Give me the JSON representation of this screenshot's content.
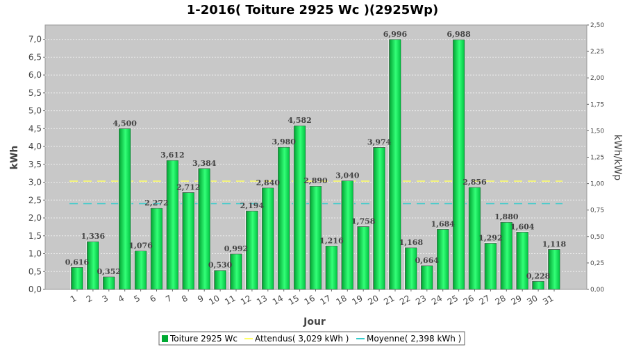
{
  "chart_data": {
    "type": "bar",
    "title": "1-2016( Toiture 2925 Wc )(2925Wp)",
    "xlabel": "Jour",
    "ylabel": "kWh",
    "ylabel_right": "kWh/kWp",
    "ylim": [
      0,
      7.4
    ],
    "ylim_right": [
      0,
      2.5
    ],
    "yticks": [
      "0,0",
      "0,5",
      "1,0",
      "1,5",
      "2,0",
      "2,5",
      "3,0",
      "3,5",
      "4,0",
      "4,5",
      "5,0",
      "5,5",
      "6,0",
      "6,5",
      "7,0"
    ],
    "yticks_right": [
      "0,00",
      "0,25",
      "0,50",
      "0,75",
      "1,00",
      "1,25",
      "1,50",
      "1,75",
      "2,00",
      "2,25",
      "2,50"
    ],
    "grid": true,
    "legend_position": "bottom",
    "categories": [
      "1",
      "2",
      "3",
      "4",
      "5",
      "6",
      "7",
      "8",
      "9",
      "10",
      "11",
      "12",
      "13",
      "14",
      "15",
      "16",
      "17",
      "18",
      "19",
      "20",
      "21",
      "22",
      "23",
      "24",
      "25",
      "26",
      "27",
      "28",
      "29",
      "30",
      "31"
    ],
    "series": [
      {
        "name": "Toiture 2925 Wc",
        "values": [
          0.616,
          1.336,
          0.352,
          4.5,
          1.076,
          2.272,
          3.612,
          2.712,
          3.384,
          0.53,
          0.992,
          2.194,
          2.84,
          3.98,
          4.582,
          2.89,
          1.216,
          3.04,
          1.758,
          3.974,
          6.996,
          1.168,
          0.664,
          1.684,
          6.988,
          2.856,
          1.292,
          1.88,
          1.604,
          0.228,
          1.118
        ],
        "labels": [
          "0,616",
          "1,336",
          "0,352",
          "4,500",
          "1,076",
          "2,272",
          "3,612",
          "2,712",
          "3,384",
          "0,530",
          "0,992",
          "2,194",
          "2,840",
          "3,980",
          "4,582",
          "2,890",
          "1,216",
          "3,040",
          "1,758",
          "3,974",
          "6,996",
          "1,168",
          "0,664",
          "1,684",
          "6,988",
          "2,856",
          "1,292",
          "1,880",
          "1,604",
          "0,228",
          "1,118"
        ],
        "color": "#00cc44"
      }
    ],
    "reference_lines": [
      {
        "name": "Attendus( 3,029 kWh )",
        "value": 3.029,
        "color": "#ffff66"
      },
      {
        "name": "Moyenne( 2,398 kWh )",
        "value": 2.398,
        "color": "#33cccc"
      }
    ],
    "legend": [
      "Toiture 2925 Wc",
      "Attendus( 3,029 kWh )",
      "Moyenne( 2,398 kWh )"
    ]
  }
}
